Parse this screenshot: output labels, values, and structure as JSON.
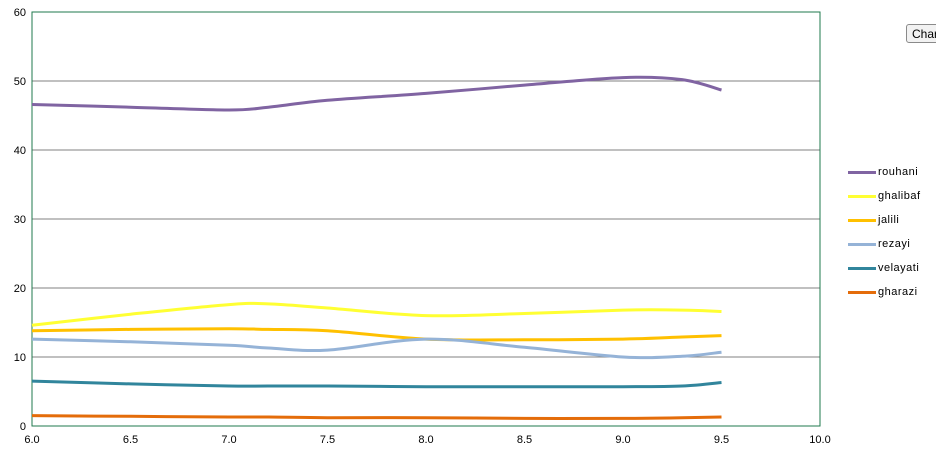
{
  "chart_button": {
    "label": "Char"
  },
  "chart_data": {
    "type": "line",
    "title": "",
    "xlabel": "",
    "ylabel": "",
    "xlim": [
      6.0,
      10.0
    ],
    "ylim": [
      0,
      60
    ],
    "x_ticks": [
      "6.0",
      "6.5",
      "7.0",
      "7.5",
      "8.0",
      "8.5",
      "9.0",
      "9.5",
      "10.0"
    ],
    "y_ticks": [
      "0",
      "10",
      "20",
      "30",
      "40",
      "50",
      "60"
    ],
    "grid": "horizontal",
    "legend_position": "right",
    "x": [
      6.0,
      6.5,
      7.0,
      7.2,
      7.5,
      8.0,
      8.5,
      9.0,
      9.3,
      9.5
    ],
    "series": [
      {
        "name": "rouhani",
        "color": "#8064a2",
        "values": [
          46.6,
          46.2,
          45.8,
          46.2,
          47.2,
          48.2,
          49.4,
          50.5,
          50.2,
          48.7
        ]
      },
      {
        "name": "ghalibaf",
        "color": "#ffff33",
        "values": [
          14.6,
          16.2,
          17.6,
          17.7,
          17.1,
          16.0,
          16.3,
          16.8,
          16.8,
          16.6
        ]
      },
      {
        "name": "jalili",
        "color": "#ffc000",
        "values": [
          13.8,
          14.0,
          14.1,
          14.0,
          13.8,
          12.6,
          12.5,
          12.6,
          12.9,
          13.1
        ]
      },
      {
        "name": "rezayi",
        "color": "#95b3d7",
        "values": [
          12.6,
          12.2,
          11.7,
          11.3,
          11.0,
          12.6,
          11.4,
          10.0,
          10.1,
          10.7
        ]
      },
      {
        "name": "velayati",
        "color": "#31859c",
        "values": [
          6.5,
          6.1,
          5.8,
          5.8,
          5.8,
          5.7,
          5.7,
          5.7,
          5.8,
          6.3
        ]
      },
      {
        "name": "gharazi",
        "color": "#e46c0a",
        "values": [
          1.5,
          1.4,
          1.3,
          1.3,
          1.2,
          1.2,
          1.1,
          1.1,
          1.2,
          1.3
        ]
      }
    ]
  }
}
